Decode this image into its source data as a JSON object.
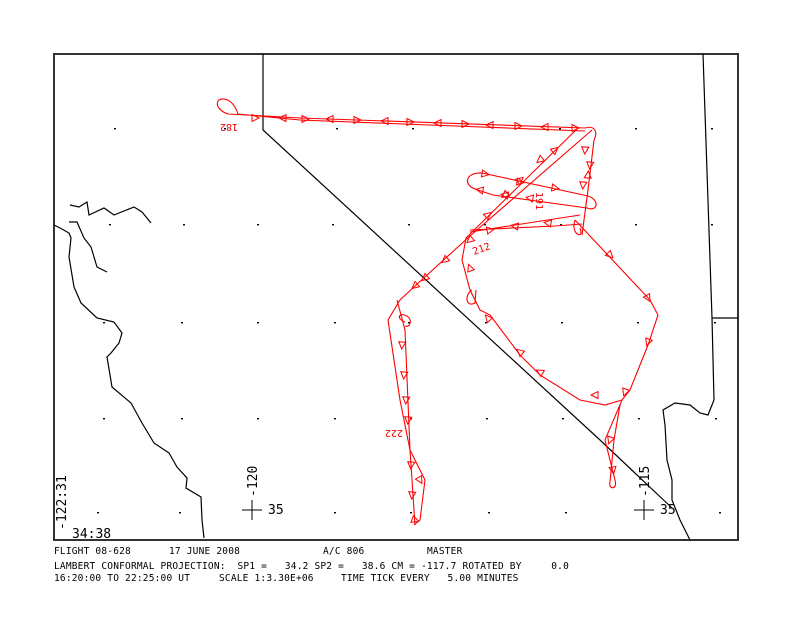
{
  "map": {
    "track_color": "#ff0000",
    "border_color": "#000000",
    "corner_lon_label": "-122:31",
    "corner_lat_label": "34:38",
    "grid_marks": [
      {
        "lon_label": "-120",
        "lat_label": "35"
      },
      {
        "lon_label": "-115",
        "lat_label": "35"
      }
    ],
    "track_labels": [
      "182",
      "191",
      "212",
      "222"
    ]
  },
  "footer": {
    "line1": {
      "flight": "FLIGHT 08-628",
      "date": "17 JUNE 2008",
      "aircraft": "A/C 806",
      "mode": "MASTER"
    },
    "line2": {
      "projection": "LAMBERT CONFORMAL PROJECTION:  SP1 =   34.2 SP2 =   38.6 CM = -117.7 ROTATED BY     0.0"
    },
    "line3": {
      "time_range": "16:20:00 TO 22:25:00 UT",
      "scale": "SCALE 1:3.30E+06",
      "tick": "TIME TICK EVERY   5.00 MINUTES"
    }
  }
}
